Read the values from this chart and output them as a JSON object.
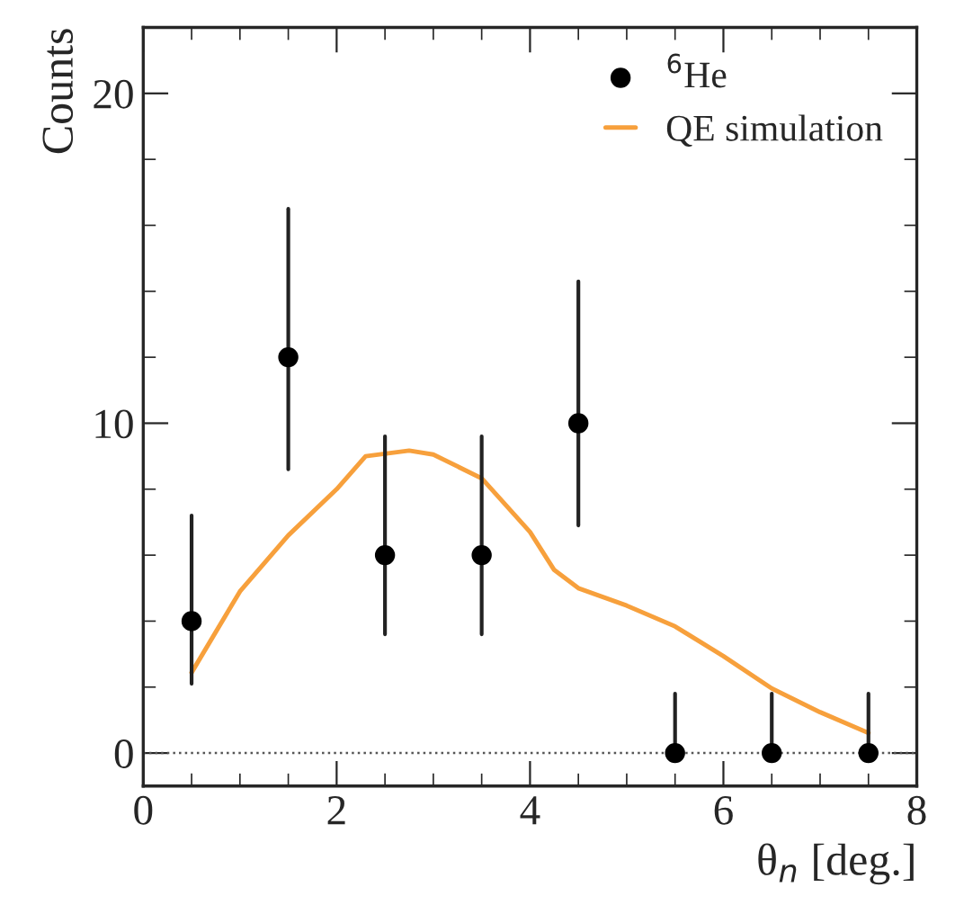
{
  "chart_data": {
    "type": "scatter",
    "xlabel": "θ$_{n}$ [deg.]",
    "ylabel": "Counts",
    "xlim": [
      0,
      8
    ],
    "xticks": [
      0,
      2,
      4,
      6,
      8
    ],
    "ylim": [
      -1,
      22
    ],
    "yticks": [
      0,
      10,
      20
    ],
    "legend": "top right",
    "grid": false,
    "series": [
      {
        "name": "$^{6}$He",
        "color": "#000000",
        "marker": "circle",
        "x": [
          0.5,
          1.5,
          2.5,
          3.5,
          4.5,
          5.5,
          6.5,
          7.5
        ],
        "values": [
          4,
          12,
          6,
          6,
          10,
          0,
          0,
          0
        ],
        "errors": [
          [
            2.1,
            7.2
          ],
          [
            8.6,
            16.5
          ],
          [
            3.6,
            9.6
          ],
          [
            3.6,
            9.6
          ],
          [
            6.9,
            14.3
          ],
          [
            0,
            1.8
          ],
          [
            0,
            1.8
          ],
          [
            0,
            1.8
          ]
        ]
      },
      {
        "name": "QE simulation",
        "type": "line",
        "color": "#f7a03c",
        "marker": "none",
        "line_style": "solid",
        "x": [
          0.5,
          1,
          1.5,
          2,
          2.3,
          2.75,
          3,
          3.5,
          4,
          4.25,
          4.5,
          5,
          5.5,
          6,
          6.5,
          7,
          7.5
        ],
        "values": [
          2.44,
          4.9,
          6.6,
          8.0,
          9.0,
          9.17,
          9.05,
          8.33,
          6.7,
          5.55,
          5.0,
          4.47,
          3.84,
          2.94,
          1.96,
          1.24,
          0.61
        ]
      }
    ],
    "ref_lines": [
      {
        "axis": "y",
        "value": 0,
        "color": "#555555",
        "line_style": "dotted"
      }
    ]
  }
}
